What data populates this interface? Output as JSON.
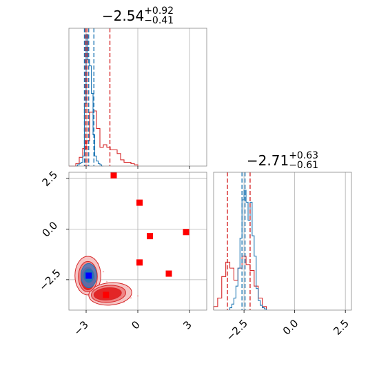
{
  "colors": {
    "red": "#d62728",
    "red_marker": "#ff0000",
    "blue": "#1f77b4",
    "blue_marker": "#0000ff",
    "grid": "#b0b0b0",
    "axis": "#888888",
    "fill_dark": "#e32626",
    "fill_mid": "#ef8585",
    "fill_light": "#f6c4c4",
    "fill_blue": "#4d77b8"
  },
  "chart_data": [
    {
      "type": "histogram",
      "panel": "top-left",
      "title": {
        "median": "−2.54",
        "plus": "+0.92",
        "minus": "−0.41"
      },
      "xlim": [
        -4.0,
        4.0
      ],
      "x_ticks": [
        -3,
        0,
        3
      ],
      "show_x_tick_labels": false,
      "grid": true,
      "series": [
        {
          "color": "red",
          "bins": [
            -4.0,
            -3.8,
            -3.6,
            -3.4,
            -3.2,
            -3.0,
            -2.8,
            -2.6,
            -2.4,
            -2.2,
            -2.0,
            -1.8,
            -1.6,
            -1.4,
            -1.2,
            -1.0,
            -0.8,
            -0.6,
            -0.4,
            -0.2,
            0.0
          ],
          "density": [
            0.0,
            0.0,
            0.02,
            0.07,
            0.14,
            0.2,
            0.43,
            0.44,
            0.3,
            0.15,
            0.17,
            0.15,
            0.13,
            0.13,
            0.1,
            0.05,
            0.03,
            0.03,
            0.02,
            0.01
          ],
          "quantiles": [
            -3.05,
            -2.95,
            -1.62
          ]
        },
        {
          "color": "blue",
          "bins": [
            -3.6,
            -3.5,
            -3.4,
            -3.3,
            -3.2,
            -3.1,
            -3.0,
            -2.9,
            -2.8,
            -2.7,
            -2.6,
            -2.5,
            -2.4,
            -2.3,
            -2.2,
            -2.1,
            -2.0
          ],
          "density": [
            0.0,
            0.01,
            0.02,
            0.03,
            0.08,
            0.5,
            1.05,
            0.85,
            0.8,
            0.58,
            0.25,
            0.08,
            0.04,
            0.02,
            0.01,
            0.0
          ],
          "quantiles": [
            -3.1,
            -2.85,
            -2.55
          ]
        }
      ]
    },
    {
      "type": "contour",
      "panel": "bottom-left",
      "xlim": [
        -4.0,
        4.0
      ],
      "ylim": [
        -4.0,
        2.8
      ],
      "x_ticks": [
        -3,
        0,
        3
      ],
      "x_tick_labels": [
        "−3",
        "0",
        "3"
      ],
      "y_ticks": [
        2.5,
        0.0,
        -2.5
      ],
      "y_tick_labels": [
        "2.5",
        "0.0",
        "−2.5"
      ],
      "grid": true,
      "red_points": [
        {
          "x": -1.4,
          "y": 2.65
        },
        {
          "x": 0.1,
          "y": 1.3
        },
        {
          "x": 2.8,
          "y": -0.15
        },
        {
          "x": 0.7,
          "y": -0.35
        },
        {
          "x": 0.1,
          "y": -1.65
        },
        {
          "x": 1.8,
          "y": -2.2
        },
        {
          "x": -1.85,
          "y": -3.25
        }
      ],
      "blue_point": {
        "x": -2.85,
        "y": -2.3
      }
    },
    {
      "type": "histogram",
      "panel": "bottom-right",
      "title": {
        "median": "−2.71",
        "plus": "+0.63",
        "minus": "−0.61"
      },
      "xlim": [
        -4.0,
        2.8
      ],
      "x_ticks": [
        -2.5,
        0.0,
        2.5
      ],
      "x_tick_labels": [
        "−2.5",
        "0.0",
        "2.5"
      ],
      "grid": true,
      "series": [
        {
          "color": "red",
          "bins": [
            -4.0,
            -3.8,
            -3.6,
            -3.4,
            -3.2,
            -3.0,
            -2.8,
            -2.6,
            -2.4,
            -2.2,
            -2.0,
            -1.8,
            -1.6,
            -1.4
          ],
          "density": [
            0.03,
            0.1,
            0.28,
            0.4,
            0.35,
            0.25,
            0.35,
            0.45,
            0.38,
            0.33,
            0.2,
            0.1,
            0.03
          ],
          "quantiles": [
            -3.32,
            -2.2
          ]
        },
        {
          "color": "blue",
          "bins": [
            -3.2,
            -3.1,
            -3.0,
            -2.9,
            -2.8,
            -2.7,
            -2.6,
            -2.5,
            -2.4,
            -2.3,
            -2.2,
            -2.1,
            -2.0,
            -1.9,
            -1.8,
            -1.7,
            -1.6,
            -1.5,
            -1.4
          ],
          "density": [
            0.02,
            0.05,
            0.1,
            0.2,
            0.35,
            0.6,
            0.92,
            1.0,
            0.9,
            0.75,
            0.9,
            0.62,
            0.45,
            0.18,
            0.08,
            0.04,
            0.02,
            0.01
          ],
          "quantiles": [
            -2.6,
            -2.45
          ]
        }
      ]
    }
  ]
}
